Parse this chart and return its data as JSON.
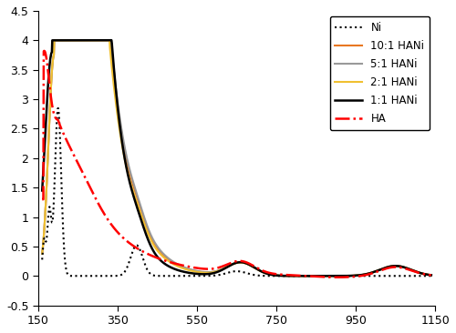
{
  "xlim": [
    150,
    1150
  ],
  "ylim": [
    -0.5,
    4.5
  ],
  "xticks": [
    150,
    350,
    550,
    750,
    950,
    1150
  ],
  "yticks": [
    -0.5,
    0,
    0.5,
    1,
    1.5,
    2,
    2.5,
    3,
    3.5,
    4,
    4.5
  ],
  "legend_labels": [
    "Ni",
    "10:1 HANi",
    "5:1 HANi",
    "2:1 HANi",
    "1:1 HANi",
    "HA"
  ],
  "line_colors": [
    "black",
    "#E87722",
    "#999999",
    "#F0C030",
    "black",
    "red"
  ],
  "line_styles": [
    "dotted",
    "solid",
    "solid",
    "solid",
    "solid",
    "dashdot"
  ],
  "line_widths": [
    1.5,
    1.5,
    1.5,
    1.5,
    1.8,
    1.8
  ],
  "figsize": [
    5.0,
    3.66
  ],
  "dpi": 100,
  "background_color": "#ffffff"
}
